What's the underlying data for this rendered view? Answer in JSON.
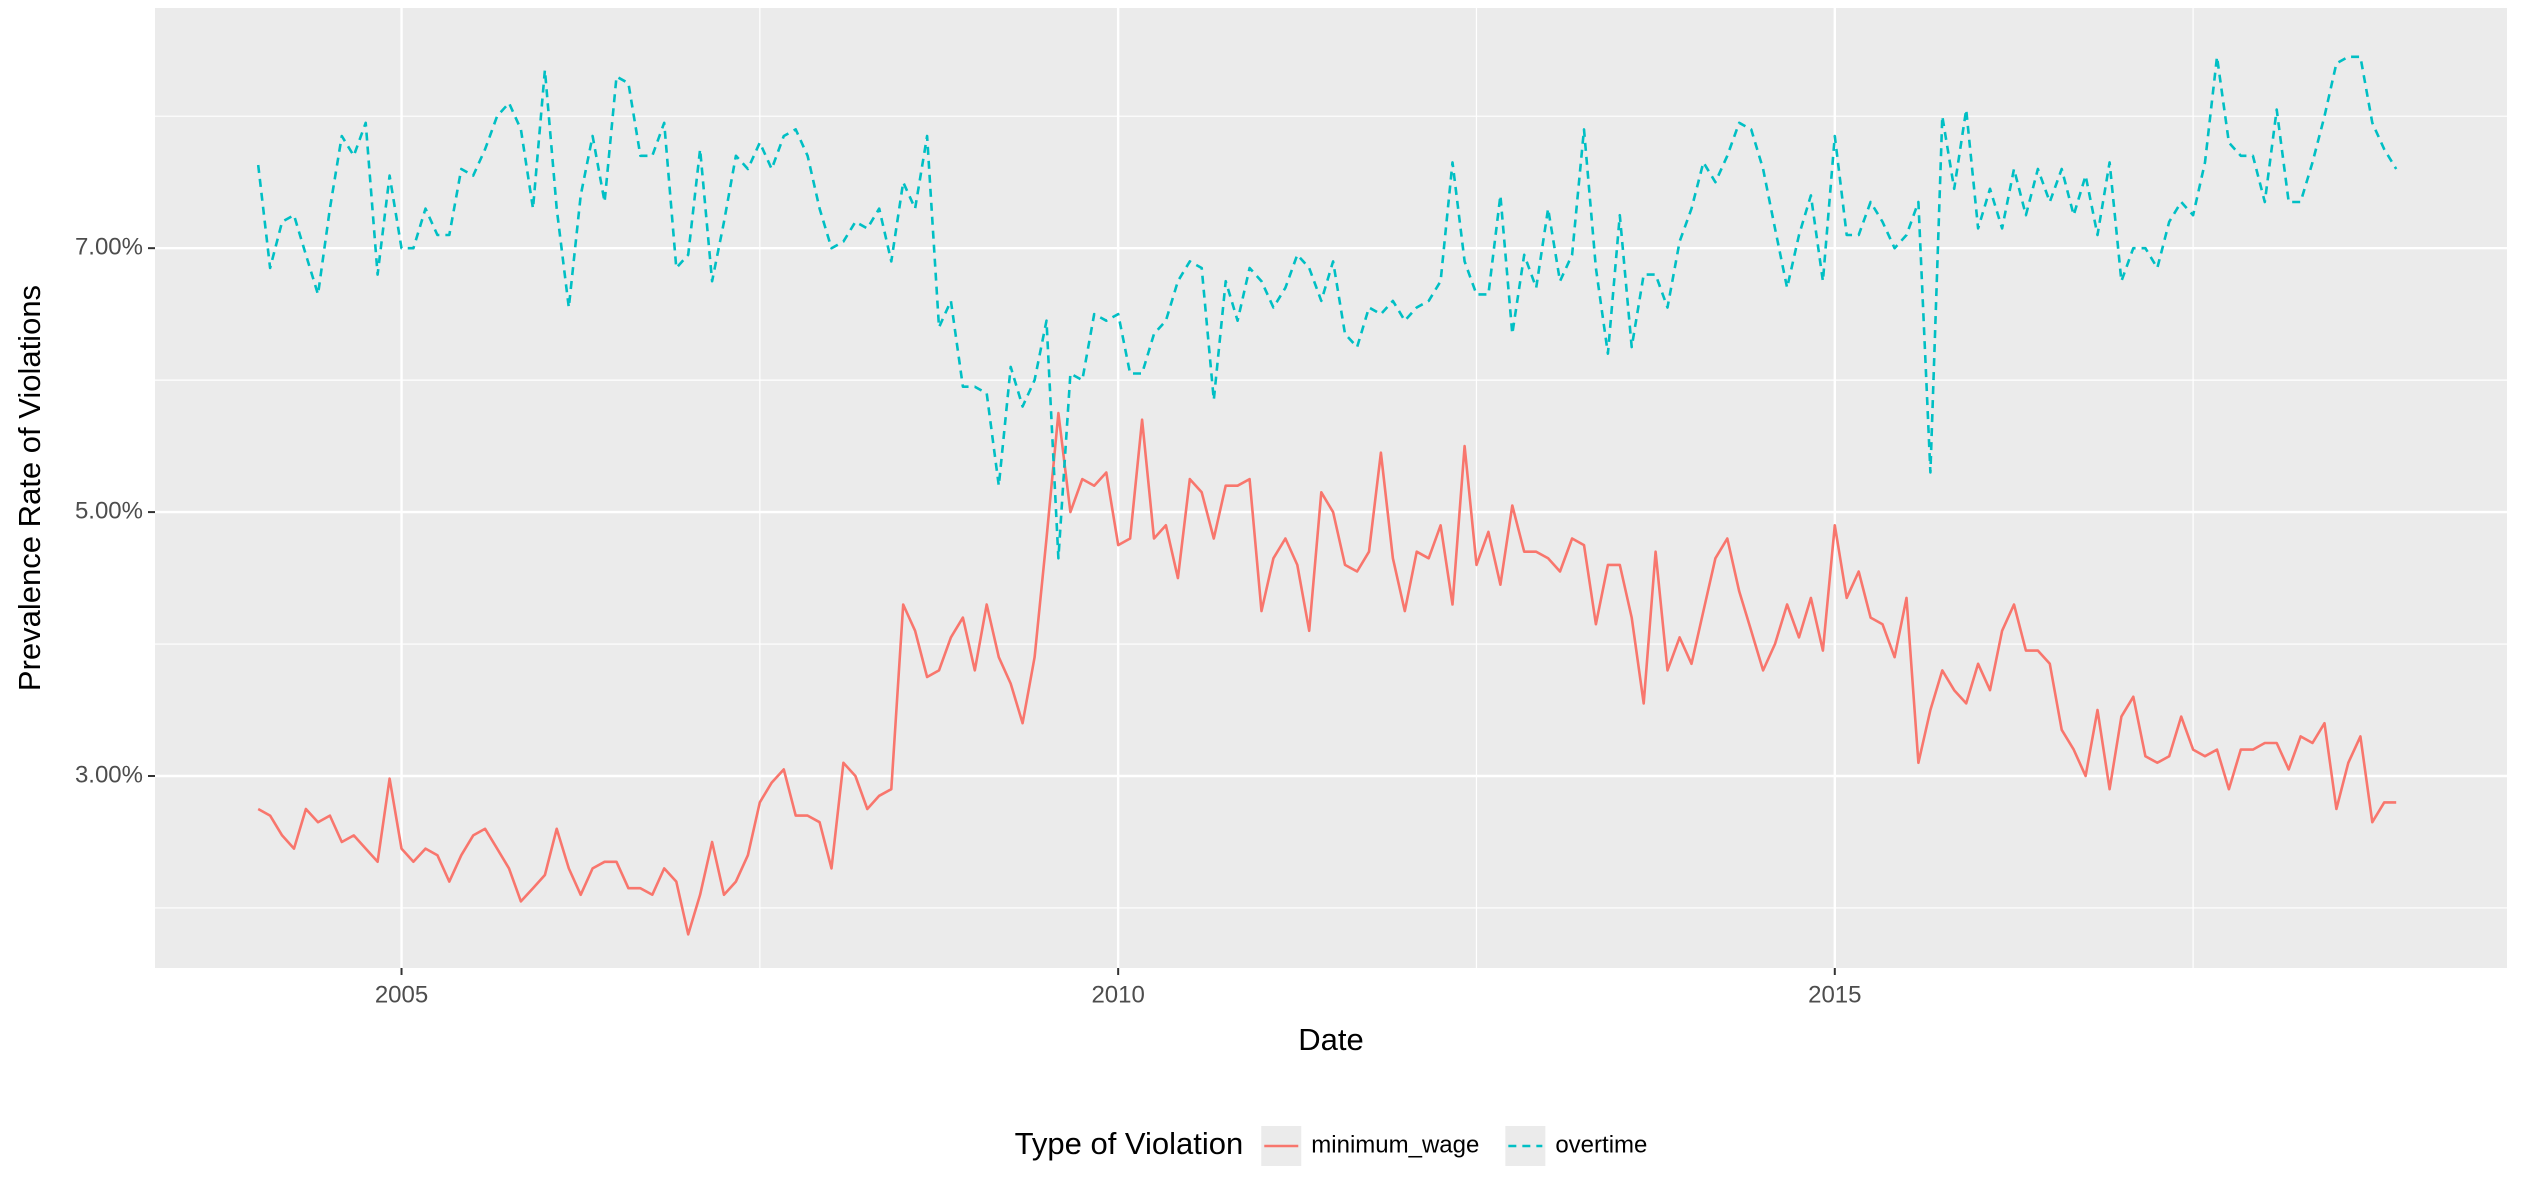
{
  "chart_data": {
    "type": "line",
    "x_label": "Date",
    "y_label": "Prevalence Rate of Violations",
    "legend_title": "Type of Violation",
    "legend": "bottom",
    "grid": true,
    "xlim": [
      2003.28,
      2019.69
    ],
    "ylim": [
      1.545,
      8.82
    ],
    "xticks": [
      2005,
      2010,
      2015
    ],
    "yticks": [
      {
        "value": 3,
        "label": "3.00%"
      },
      {
        "value": 5,
        "label": "5.00%"
      },
      {
        "value": 7,
        "label": "7.00%"
      }
    ],
    "x": [
      2004,
      2004.083,
      2004.167,
      2004.25,
      2004.333,
      2004.417,
      2004.5,
      2004.583,
      2004.667,
      2004.75,
      2004.833,
      2004.917,
      2005,
      2005.083,
      2005.167,
      2005.25,
      2005.333,
      2005.417,
      2005.5,
      2005.583,
      2005.667,
      2005.75,
      2005.833,
      2005.917,
      2006,
      2006.083,
      2006.167,
      2006.25,
      2006.333,
      2006.417,
      2006.5,
      2006.583,
      2006.667,
      2006.75,
      2006.833,
      2006.917,
      2007,
      2007.083,
      2007.167,
      2007.25,
      2007.333,
      2007.417,
      2007.5,
      2007.583,
      2007.667,
      2007.75,
      2007.833,
      2007.917,
      2008,
      2008.083,
      2008.167,
      2008.25,
      2008.333,
      2008.417,
      2008.5,
      2008.583,
      2008.667,
      2008.75,
      2008.833,
      2008.917,
      2009,
      2009.083,
      2009.167,
      2009.25,
      2009.333,
      2009.417,
      2009.5,
      2009.583,
      2009.667,
      2009.75,
      2009.833,
      2009.917,
      2010,
      2010.083,
      2010.167,
      2010.25,
      2010.333,
      2010.417,
      2010.5,
      2010.583,
      2010.667,
      2010.75,
      2010.833,
      2010.917,
      2011,
      2011.083,
      2011.167,
      2011.25,
      2011.333,
      2011.417,
      2011.5,
      2011.583,
      2011.667,
      2011.75,
      2011.833,
      2011.917,
      2012,
      2012.083,
      2012.167,
      2012.25,
      2012.333,
      2012.417,
      2012.5,
      2012.583,
      2012.667,
      2012.75,
      2012.833,
      2012.917,
      2013,
      2013.083,
      2013.167,
      2013.25,
      2013.333,
      2013.417,
      2013.5,
      2013.583,
      2013.667,
      2013.75,
      2013.833,
      2013.917,
      2014,
      2014.083,
      2014.167,
      2014.25,
      2014.333,
      2014.417,
      2014.5,
      2014.583,
      2014.667,
      2014.75,
      2014.833,
      2014.917,
      2015,
      2015.083,
      2015.167,
      2015.25,
      2015.333,
      2015.417,
      2015.5,
      2015.583,
      2015.667,
      2015.75,
      2015.833,
      2015.917,
      2016,
      2016.083,
      2016.167,
      2016.25,
      2016.333,
      2016.417,
      2016.5,
      2016.583,
      2016.667,
      2016.75,
      2016.833,
      2016.917,
      2017,
      2017.083,
      2017.167,
      2017.25,
      2017.333,
      2017.417,
      2017.5,
      2017.583,
      2017.667,
      2017.75,
      2017.833,
      2017.917,
      2018,
      2018.083,
      2018.167,
      2018.25,
      2018.333,
      2018.417,
      2018.5,
      2018.583,
      2018.667,
      2018.75,
      2018.833,
      2018.917
    ],
    "series": [
      {
        "name": "minimum_wage",
        "color": "#F8766D",
        "linetype": "solid",
        "values": [
          2.75,
          2.7,
          2.55,
          2.45,
          2.75,
          2.65,
          2.7,
          2.5,
          2.55,
          2.45,
          2.35,
          2.98,
          2.45,
          2.35,
          2.45,
          2.4,
          2.2,
          2.4,
          2.55,
          2.6,
          2.45,
          2.3,
          2.05,
          2.15,
          2.25,
          2.6,
          2.3,
          2.1,
          2.3,
          2.35,
          2.35,
          2.15,
          2.15,
          2.1,
          2.3,
          2.2,
          1.8,
          2.1,
          2.5,
          2.1,
          2.2,
          2.4,
          2.8,
          2.95,
          3.05,
          2.7,
          2.7,
          2.65,
          2.3,
          3.1,
          3.0,
          2.75,
          2.85,
          2.9,
          4.3,
          4.1,
          3.75,
          3.8,
          4.05,
          4.2,
          3.8,
          4.3,
          3.9,
          3.7,
          3.4,
          3.9,
          4.8,
          5.75,
          5.0,
          5.25,
          5.2,
          5.3,
          4.75,
          4.8,
          5.7,
          4.8,
          4.9,
          4.5,
          5.25,
          5.15,
          4.8,
          5.2,
          5.2,
          5.25,
          4.25,
          4.65,
          4.8,
          4.6,
          4.1,
          5.15,
          5.0,
          4.6,
          4.55,
          4.7,
          5.45,
          4.65,
          4.25,
          4.7,
          4.65,
          4.9,
          4.3,
          5.5,
          4.6,
          4.85,
          4.45,
          5.05,
          4.7,
          4.7,
          4.65,
          4.55,
          4.8,
          4.75,
          4.15,
          4.6,
          4.6,
          4.2,
          3.55,
          4.7,
          3.8,
          4.05,
          3.85,
          4.25,
          4.65,
          4.8,
          4.4,
          4.1,
          3.8,
          4.0,
          4.3,
          4.05,
          4.35,
          3.95,
          4.9,
          4.35,
          4.55,
          4.2,
          4.15,
          3.9,
          4.35,
          3.1,
          3.5,
          3.8,
          3.65,
          3.55,
          3.85,
          3.65,
          4.1,
          4.3,
          3.95,
          3.95,
          3.85,
          3.35,
          3.2,
          3.0,
          3.5,
          2.9,
          3.45,
          3.6,
          3.15,
          3.1,
          3.15,
          3.45,
          3.2,
          3.15,
          3.2,
          2.9,
          3.2,
          3.2,
          3.25,
          3.25,
          3.05,
          3.3,
          3.25,
          3.4,
          2.75,
          3.1,
          3.3,
          2.65,
          2.8,
          2.8
        ]
      },
      {
        "name": "overtime",
        "color": "#00BFC4",
        "linetype": "dashed",
        "values": [
          7.63,
          6.85,
          7.2,
          7.25,
          6.95,
          6.65,
          7.3,
          7.85,
          7.7,
          7.95,
          6.8,
          7.55,
          7.0,
          7.0,
          7.3,
          7.1,
          7.1,
          7.6,
          7.55,
          7.75,
          8.0,
          8.1,
          7.9,
          7.3,
          8.35,
          7.3,
          6.55,
          7.4,
          7.85,
          7.35,
          8.3,
          8.25,
          7.7,
          7.7,
          7.95,
          6.85,
          6.95,
          7.75,
          6.75,
          7.2,
          7.7,
          7.6,
          7.8,
          7.6,
          7.85,
          7.9,
          7.7,
          7.3,
          7.0,
          7.05,
          7.2,
          7.15,
          7.3,
          6.9,
          7.5,
          7.3,
          7.85,
          6.4,
          6.6,
          5.95,
          5.95,
          5.9,
          5.2,
          6.1,
          5.8,
          6.0,
          6.45,
          4.65,
          6.05,
          6.0,
          6.5,
          6.45,
          6.5,
          6.05,
          6.05,
          6.35,
          6.45,
          6.75,
          6.9,
          6.85,
          5.85,
          6.75,
          6.45,
          6.85,
          6.75,
          6.55,
          6.7,
          6.95,
          6.85,
          6.6,
          6.9,
          6.35,
          6.25,
          6.55,
          6.5,
          6.6,
          6.45,
          6.55,
          6.6,
          6.75,
          7.65,
          6.9,
          6.65,
          6.65,
          7.4,
          6.35,
          6.95,
          6.7,
          7.3,
          6.75,
          6.95,
          7.9,
          6.85,
          6.2,
          7.25,
          6.25,
          6.8,
          6.8,
          6.55,
          7.05,
          7.3,
          7.65,
          7.5,
          7.7,
          7.95,
          7.9,
          7.6,
          7.15,
          6.7,
          7.1,
          7.4,
          6.75,
          7.85,
          7.1,
          7.1,
          7.35,
          7.2,
          7.0,
          7.1,
          7.35,
          5.3,
          8.0,
          7.45,
          8.05,
          7.15,
          7.45,
          7.15,
          7.6,
          7.25,
          7.6,
          7.35,
          7.6,
          7.25,
          7.55,
          7.1,
          7.65,
          6.75,
          7.0,
          7.0,
          6.85,
          7.2,
          7.35,
          7.25,
          7.65,
          8.45,
          7.8,
          7.7,
          7.7,
          7.35,
          8.05,
          7.35,
          7.35,
          7.65,
          8.0,
          8.4,
          8.45,
          8.45,
          7.95,
          7.75,
          7.6
        ]
      }
    ]
  }
}
